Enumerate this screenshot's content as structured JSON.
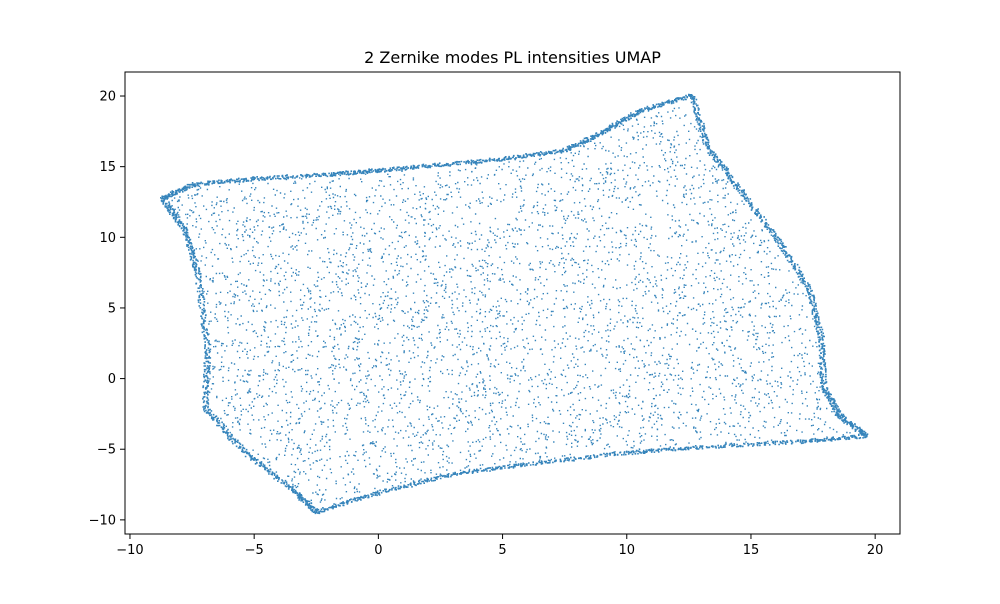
{
  "chart_data": {
    "type": "scatter",
    "title": "2 Zernike modes PL intensities UMAP",
    "xlabel": "",
    "ylabel": "",
    "xlim": [
      -10.2,
      21.0
    ],
    "ylim": [
      -11.0,
      21.7
    ],
    "xticks": [
      -10,
      -5,
      0,
      5,
      10,
      15,
      20
    ],
    "xtick_labels": [
      "−10",
      "−5",
      "0",
      "5",
      "10",
      "15",
      "20"
    ],
    "yticks": [
      -10,
      -5,
      0,
      5,
      10,
      15,
      20
    ],
    "ytick_labels": [
      "−10",
      "−5",
      "0",
      "5",
      "10",
      "15",
      "20"
    ],
    "grid": false,
    "legend": "none",
    "marker_color": "#1f77b4",
    "series": [
      {
        "point_count_estimate": 60000,
        "region_boundary": [
          [
            -8.7,
            12.8
          ],
          [
            -7.5,
            13.8
          ],
          [
            -5.0,
            14.2
          ],
          [
            -2.0,
            14.5
          ],
          [
            0.0,
            14.8
          ],
          [
            2.5,
            15.2
          ],
          [
            5.0,
            15.6
          ],
          [
            7.5,
            16.2
          ],
          [
            9.0,
            17.5
          ],
          [
            10.5,
            19.0
          ],
          [
            12.6,
            20.1
          ],
          [
            13.2,
            16.5
          ],
          [
            14.5,
            13.5
          ],
          [
            16.0,
            10.0
          ],
          [
            17.3,
            6.5
          ],
          [
            17.8,
            3.0
          ],
          [
            17.9,
            -0.5
          ],
          [
            18.5,
            -2.5
          ],
          [
            19.6,
            -4.0
          ],
          [
            17.0,
            -4.4
          ],
          [
            13.0,
            -4.8
          ],
          [
            10.0,
            -5.2
          ],
          [
            6.0,
            -6.0
          ],
          [
            3.0,
            -6.7
          ],
          [
            0.0,
            -8.0
          ],
          [
            -2.5,
            -9.4
          ],
          [
            -3.5,
            -7.8
          ],
          [
            -5.5,
            -5.0
          ],
          [
            -7.0,
            -2.0
          ],
          [
            -6.9,
            2.0
          ],
          [
            -7.3,
            7.5
          ],
          [
            -7.8,
            10.5
          ]
        ]
      }
    ]
  }
}
